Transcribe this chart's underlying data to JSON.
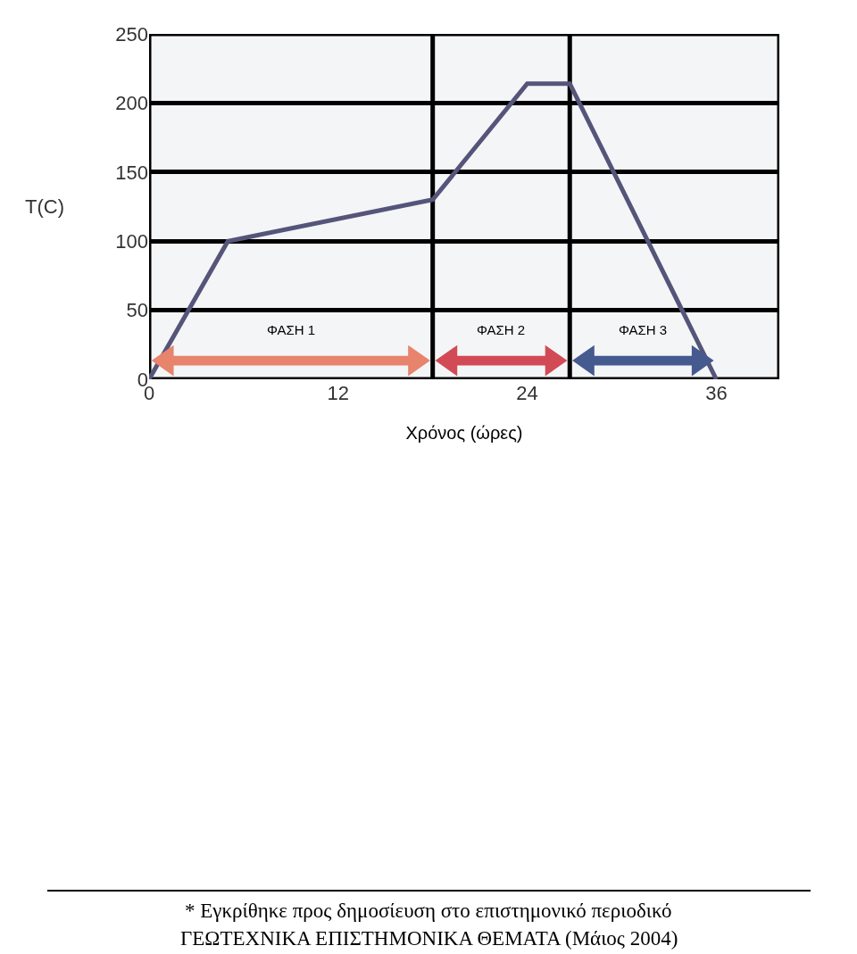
{
  "chart_data": {
    "type": "line",
    "xlabel": "Χρόνος (ώρες)",
    "ylabel": "T(C)",
    "x": [
      0,
      5,
      18,
      24,
      26.7,
      36
    ],
    "series": [
      {
        "color": "#55557a",
        "values": [
          0,
          100,
          130,
          214,
          214,
          0
        ]
      }
    ],
    "xlim": [
      0,
      40
    ],
    "xticks": [
      0,
      12,
      24,
      36
    ],
    "ylim": [
      0,
      250
    ],
    "yticks": [
      0,
      50,
      100,
      150,
      200,
      250
    ],
    "grid": "y",
    "marker": "none",
    "line_style": "solid",
    "ref_lines": [
      {
        "axis": "x",
        "value": 18,
        "color": "#000000"
      },
      {
        "axis": "x",
        "value": 26.7,
        "color": "#000000"
      }
    ],
    "annotations": [
      "ΦΑΣΗ 1",
      "ΦΑΣΗ 2",
      "ΦΑΣΗ 3",
      "* Εγκρίθηκε προς δημοσίευση στο επιστημονικό περιοδικό",
      "ΓΕΩΤΕΧΝΙΚΑ ΕΠΙΣΤΗΜΟΝΙΚΑ ΘΕΜΑΤΑ (Μάιος 2004)"
    ]
  }
}
